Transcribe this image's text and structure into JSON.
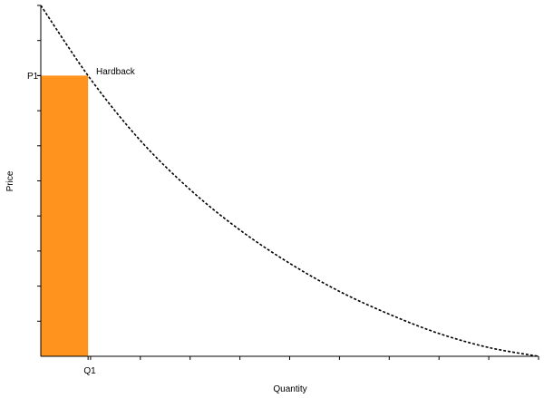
{
  "chart_data": {
    "type": "line",
    "title": "",
    "xlabel": "Quantity",
    "ylabel": "Price",
    "xlim": [
      0,
      100
    ],
    "ylim": [
      0,
      100
    ],
    "grid": false,
    "x_tick_count": 10,
    "y_tick_count": 10,
    "series": [
      {
        "name": "Hardback",
        "style": "dashed",
        "color": "#000000",
        "x": [
          0,
          10,
          20,
          30,
          40,
          50,
          60,
          70,
          80,
          90,
          100
        ],
        "y": [
          100,
          79,
          61.5,
          47.5,
          36,
          26.5,
          18.5,
          12,
          6.5,
          2.5,
          0
        ]
      }
    ],
    "marked_point": {
      "x": 9.5,
      "y": 80,
      "x_label": "Q1",
      "y_label": "P1"
    },
    "shaded_region": {
      "x_from": 0,
      "x_to": 9.5,
      "y_from": 0,
      "y_to": 80,
      "color": "#ff931e"
    }
  }
}
